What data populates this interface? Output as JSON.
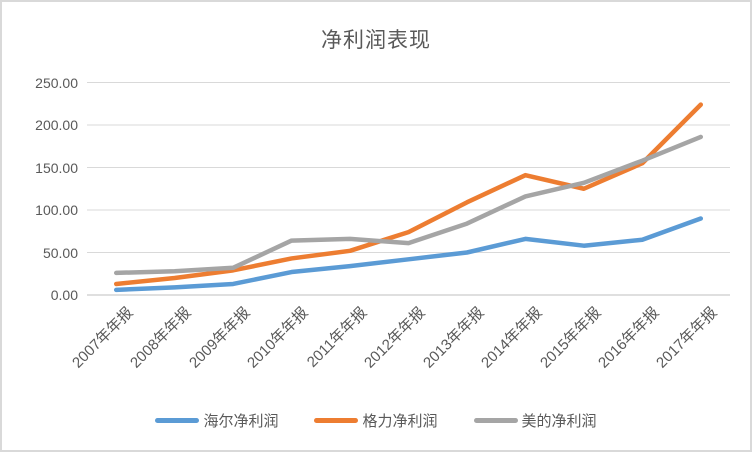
{
  "chart_data": {
    "type": "line",
    "title": "净利润表现",
    "categories": [
      "2007年年报",
      "2008年年报",
      "2009年年报",
      "2010年年报",
      "2011年年报",
      "2012年年报",
      "2013年年报",
      "2014年年报",
      "2015年年报",
      "2016年年报",
      "2017年年报"
    ],
    "series": [
      {
        "name": "海尔净利润",
        "color": "#5B9BD5",
        "values": [
          6,
          9,
          13,
          27,
          34,
          42,
          50,
          66,
          58,
          65,
          90
        ]
      },
      {
        "name": "格力净利润",
        "color": "#ED7D31",
        "values": [
          13,
          20,
          29,
          43,
          52,
          74,
          109,
          141,
          125,
          155,
          224
        ]
      },
      {
        "name": "美的净利润",
        "color": "#A5A5A5",
        "values": [
          26,
          28,
          32,
          64,
          66,
          61,
          84,
          116,
          132,
          158,
          186
        ]
      }
    ],
    "y_axis": {
      "min": 0,
      "max": 250,
      "step": 50,
      "tick_labels": [
        "0.00",
        "50.00",
        "100.00",
        "150.00",
        "200.00",
        "250.00"
      ]
    },
    "grid": true,
    "legend_position": "bottom",
    "colors": {
      "gridline": "#D9D9D9",
      "axis_line": "#BFBFBF",
      "text": "#595959"
    }
  }
}
